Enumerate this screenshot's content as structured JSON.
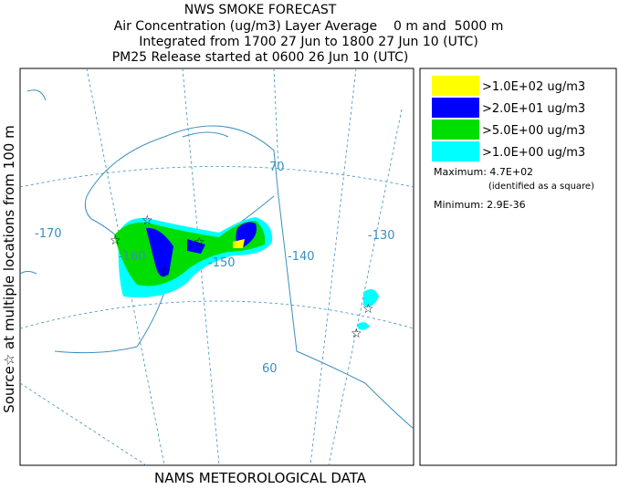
{
  "header": {
    "title": "NWS SMOKE FORECAST",
    "lines": [
      "Air Concentration (ug/m3) Layer Average    0 m and  5000 m",
      "Integrated from 1700 27 Jun to 1800 27 Jun 10 (UTC)",
      "PM25 Release started at 0600 26 Jun 10 (UTC)"
    ]
  },
  "side_label": "Source☆ at multiple locations from 100 m",
  "footer": "NAMS METEOROLOGICAL DATA",
  "map_labels": [
    "-170",
    "-160",
    "-150",
    "-140",
    "-130",
    "70",
    "60"
  ],
  "legend": {
    "items": [
      {
        "label": ">1.0E+02 ug/m3",
        "color": "#ffff00"
      },
      {
        "label": ">2.0E+01 ug/m3",
        "color": "#0000ff"
      },
      {
        "label": ">5.0E+00 ug/m3",
        "color": "#00dd00"
      },
      {
        "label": ">1.0E+00 ug/m3",
        "color": "#00ffff"
      }
    ],
    "maximum": "Maximum: 4.7E+02",
    "max_note": "(identified as a square)",
    "minimum": "Minimum: 2.9E-36"
  }
}
